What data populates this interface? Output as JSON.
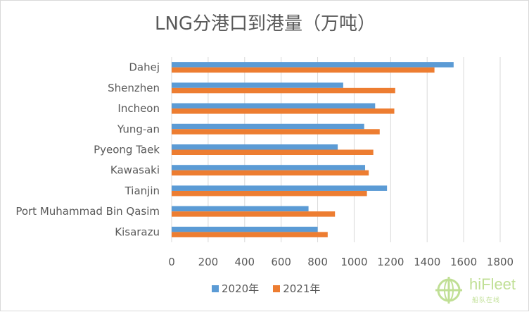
{
  "chart_data": {
    "type": "bar",
    "orientation": "horizontal",
    "title": "LNG分港口到港量（万吨）",
    "categories": [
      "Dahej",
      "Shenzhen",
      "Incheon",
      "Yung-an",
      "Pyeong Taek",
      "Kawasaki",
      "Tianjin",
      "Port Muhammad Bin Qasim",
      "Kisarazu"
    ],
    "series": [
      {
        "name": "2020年",
        "color": "#5b9bd5",
        "values": [
          1545,
          940,
          1115,
          1055,
          910,
          1060,
          1180,
          750,
          800
        ]
      },
      {
        "name": "2021年",
        "color": "#ed7d31",
        "values": [
          1440,
          1225,
          1220,
          1140,
          1105,
          1080,
          1070,
          895,
          855
        ]
      }
    ],
    "xlim": [
      0,
      1800
    ],
    "xticks": [
      0,
      200,
      400,
      600,
      800,
      1000,
      1200,
      1400,
      1600,
      1800
    ],
    "grid": "vertical",
    "legend_position": "bottom"
  },
  "legend": {
    "s1": "2020年",
    "s2": "2021年"
  },
  "watermark": {
    "brand": "hiFleet",
    "tagline": "船队在线",
    "icon": "globe-logo-icon"
  }
}
